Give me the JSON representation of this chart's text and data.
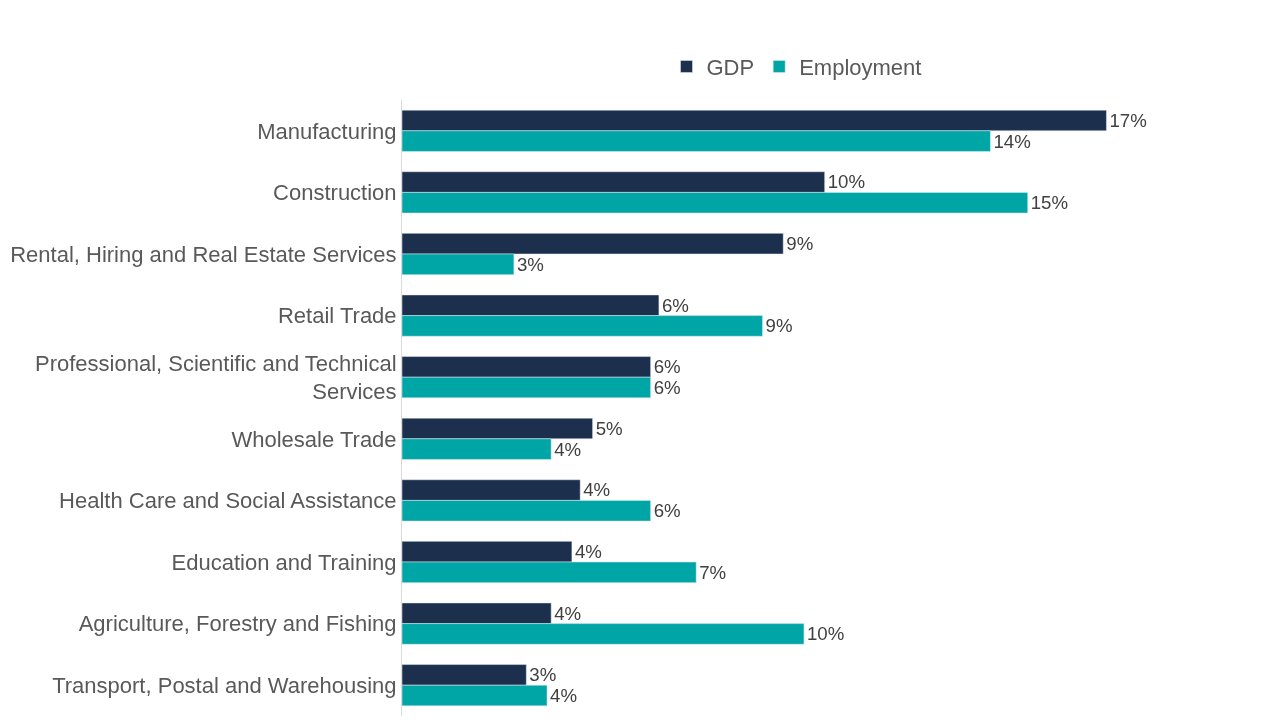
{
  "chart_data": {
    "type": "bar",
    "orientation": "horizontal",
    "legend": "top",
    "categories": [
      "Manufacturing",
      "Construction",
      "Rental, Hiring and Real Estate Services",
      "Retail Trade",
      "Professional, Scientific and Technical Services",
      "Wholesale Trade",
      "Health Care and Social Assistance",
      "Education and Training",
      "Agriculture, Forestry and Fishing",
      "Transport, Postal and Warehousing"
    ],
    "series": [
      {
        "name": "GDP",
        "color": "#1c2f4d",
        "values": [
          17.0,
          10.2,
          9.2,
          6.2,
          6.0,
          4.6,
          4.3,
          4.1,
          3.6,
          3.0
        ],
        "value_labels": [
          "17%",
          "10%",
          "9%",
          "6%",
          "6%",
          "5%",
          "4%",
          "4%",
          "4%",
          "3%"
        ]
      },
      {
        "name": "Employment",
        "color": "#00a5a5",
        "values": [
          14.2,
          15.1,
          2.7,
          8.7,
          6.0,
          3.6,
          6.0,
          7.1,
          9.7,
          3.5
        ],
        "value_labels": [
          "14%",
          "15%",
          "3%",
          "9%",
          "6%",
          "4%",
          "6%",
          "7%",
          "10%",
          "4%"
        ]
      }
    ]
  }
}
